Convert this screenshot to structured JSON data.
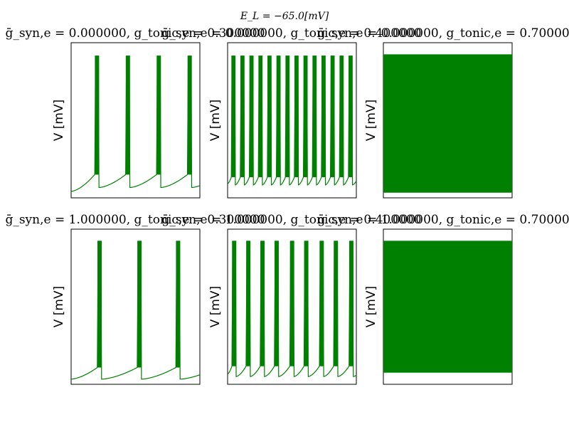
{
  "suptitle": "E_L = −65.0[mV]",
  "chart_data": [
    {
      "type": "line",
      "title": "ḡ_syn,e = 0.000000, g_tonic,e = 0.300000",
      "ylabel": "V [mV]",
      "xlabel": "",
      "color": "#008000",
      "ylim": [
        -80,
        40
      ],
      "series": [
        {
          "spike_times": [
            0.19,
            0.43,
            0.67,
            0.91
          ],
          "baseline_start": -75,
          "pre_spike": -62,
          "reset": -72,
          "peak": 30
        }
      ]
    },
    {
      "type": "line",
      "title": "ḡ_syn,e = 0.000000, g_tonic,e = 0.400000",
      "ylabel": "V [mV]",
      "xlabel": "",
      "color": "#008000",
      "ylim": [
        -80,
        40
      ],
      "series": [
        {
          "spike_times": [
            0.035,
            0.105,
            0.175,
            0.245,
            0.315,
            0.385,
            0.455,
            0.525,
            0.595,
            0.665,
            0.735,
            0.805,
            0.875,
            0.945
          ],
          "baseline_start": -69,
          "pre_spike": -64,
          "reset": -70,
          "peak": 30
        }
      ]
    },
    {
      "type": "area",
      "title": "ḡ_syn,e = 0.000000, g_tonic,e = 0.700000",
      "ylabel": "V [mV]",
      "xlabel": "",
      "color": "#008000",
      "ylim": [
        -80,
        40
      ],
      "series": [
        {
          "band_min": -76,
          "band_max": 31
        }
      ]
    },
    {
      "type": "line",
      "title": "ḡ_syn,e = 1.000000, g_tonic,e = 0.300000",
      "ylabel": "V [mV]",
      "xlabel": "",
      "color": "#008000",
      "ylim": [
        -80,
        40
      ],
      "series": [
        {
          "spike_times": [
            0.21,
            0.52,
            0.82
          ],
          "baseline_start": -76,
          "pre_spike": -67,
          "reset": -76,
          "peak": 31
        }
      ]
    },
    {
      "type": "line",
      "title": "ḡ_syn,e = 1.000000, g_tonic,e = 0.400000",
      "ylabel": "V [mV]",
      "xlabel": "",
      "color": "#008000",
      "ylim": [
        -80,
        40
      ],
      "series": [
        {
          "spike_times": [
            0.04,
            0.15,
            0.26,
            0.37,
            0.49,
            0.6,
            0.72,
            0.83,
            0.95
          ],
          "baseline_start": -72,
          "pre_spike": -66,
          "reset": -74,
          "peak": 31
        }
      ]
    },
    {
      "type": "area",
      "title": "ḡ_syn,e = 1.000000, g_tonic,e = 0.700000",
      "ylabel": "V [mV]",
      "xlabel": "",
      "color": "#008000",
      "ylim": [
        -80,
        40
      ],
      "series": [
        {
          "band_min": -71,
          "band_max": 31
        }
      ]
    }
  ]
}
